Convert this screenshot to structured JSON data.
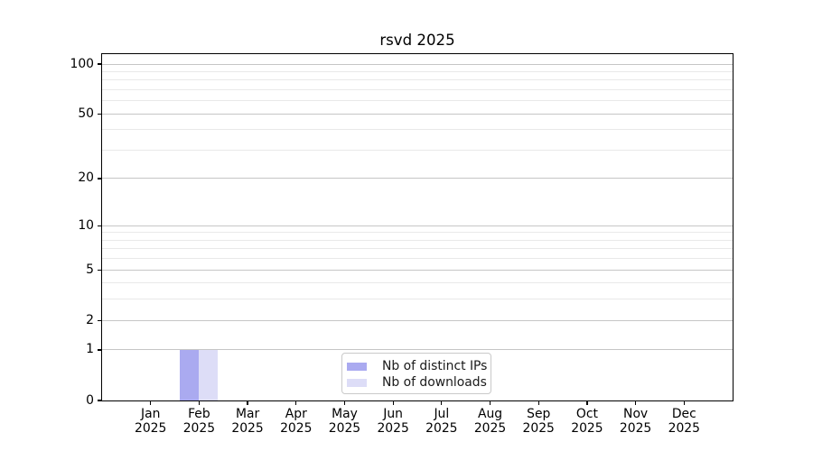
{
  "title": "rsvd 2025",
  "chart_data": {
    "type": "bar",
    "title": "rsvd 2025",
    "months": [
      "Jan",
      "Feb",
      "Mar",
      "Apr",
      "May",
      "Jun",
      "Jul",
      "Aug",
      "Sep",
      "Oct",
      "Nov",
      "Dec"
    ],
    "year_label": "2025",
    "categories": [
      "Jan 2025",
      "Feb 2025",
      "Mar 2025",
      "Apr 2025",
      "May 2025",
      "Jun 2025",
      "Jul 2025",
      "Aug 2025",
      "Sep 2025",
      "Oct 2025",
      "Nov 2025",
      "Dec 2025"
    ],
    "series": [
      {
        "name": "Nb of distinct IPs",
        "color": "#aaaaf0",
        "values": [
          0,
          1,
          0,
          0,
          0,
          0,
          0,
          0,
          0,
          0,
          0,
          0
        ]
      },
      {
        "name": "Nb of downloads",
        "color": "#ddddf7",
        "values": [
          0,
          1,
          0,
          0,
          0,
          0,
          0,
          0,
          0,
          0,
          0,
          0
        ]
      }
    ],
    "xlabel": "",
    "ylabel": "",
    "yscale": "log10(1+y)",
    "ylim": [
      0,
      114.8
    ],
    "yticks_major": [
      0,
      1,
      2,
      5,
      10,
      20,
      50,
      100
    ],
    "yticks_minor": [
      3,
      4,
      6,
      7,
      8,
      9,
      30,
      40,
      60,
      70,
      80,
      90
    ],
    "grid": true,
    "legend_position": "lower center",
    "colors": {
      "grid_major": "#c6c6c6",
      "grid_minor": "#e9e9e9",
      "spine": "#000000",
      "text": "#000000",
      "legend_border": "#c9c9c9",
      "legend_background": "#ffffff"
    }
  }
}
